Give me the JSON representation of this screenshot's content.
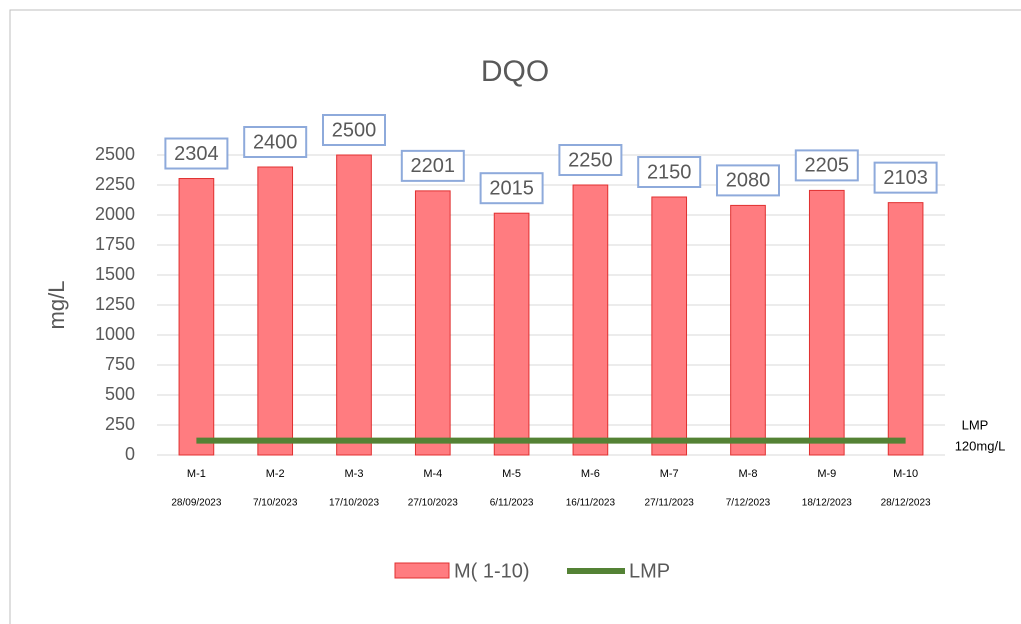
{
  "chart_data": {
    "type": "bar",
    "title": "DQO",
    "y_label": "mg/L",
    "categories": [
      "M-1",
      "M-2",
      "M-3",
      "M-4",
      "M-5",
      "M-6",
      "M-7",
      "M-8",
      "M-9",
      "M-10"
    ],
    "dates": [
      "28/09/2023",
      "7/10/2023",
      "17/10/2023",
      "27/10/2023",
      "6/11/2023",
      "16/11/2023",
      "27/11/2023",
      "7/12/2023",
      "18/12/2023",
      "28/12/2023"
    ],
    "series": [
      {
        "name": "M( 1-10)",
        "type": "bar",
        "color": "#ff7c80",
        "values": [
          2304,
          2400,
          2500,
          2201,
          2015,
          2250,
          2150,
          2080,
          2205,
          2103
        ]
      },
      {
        "name": "LMP",
        "type": "line",
        "color": "#548235",
        "values": [
          120,
          120,
          120,
          120,
          120,
          120,
          120,
          120,
          120,
          120
        ]
      }
    ],
    "annotations": [
      "LMP",
      "120mg/L"
    ],
    "ylim": [
      0,
      2500
    ],
    "yticks": [
      0,
      250,
      500,
      750,
      1000,
      1250,
      1500,
      1750,
      2000,
      2250,
      2500
    ],
    "grid": true
  }
}
